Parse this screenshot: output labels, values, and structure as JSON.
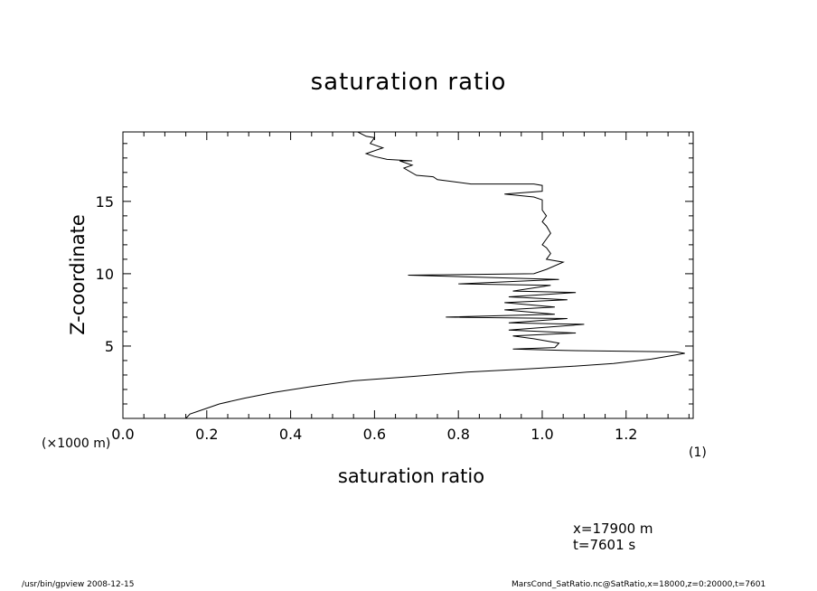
{
  "chart_data": {
    "type": "line",
    "title": "saturation ratio",
    "xlabel": "saturation ratio",
    "ylabel": "Z-coordinate",
    "x_unit_label": "(1)",
    "y_unit_label": "(×1000 m)",
    "xlim": [
      0.0,
      1.36
    ],
    "ylim": [
      0.0,
      19.8
    ],
    "x_ticks": [
      "0.0",
      "0.2",
      "0.4",
      "0.6",
      "0.8",
      "1.0",
      "1.2"
    ],
    "y_ticks": [
      "5",
      "10",
      "15"
    ],
    "grid": false,
    "legend": "none",
    "series": [
      {
        "x": [
          0.15,
          0.16,
          0.19,
          0.23,
          0.29,
          0.36,
          0.45,
          0.55,
          0.69,
          0.82,
          0.95,
          1.07,
          1.17,
          1.26,
          1.3,
          1.34,
          1.32,
          1.05,
          0.93,
          1.03,
          1.04,
          0.98,
          0.93,
          1.08,
          0.92,
          1.1,
          0.92,
          1.06,
          0.77,
          1.03,
          0.91,
          1.03,
          0.91,
          1.06,
          0.92,
          1.08,
          0.93,
          1.02,
          0.8,
          1.04,
          0.68,
          0.98,
          1.01,
          1.05,
          1.01,
          1.02,
          1.01,
          1.0,
          1.01,
          1.02,
          1.01,
          1.0,
          1.01,
          1.0,
          1.0,
          0.98,
          0.91,
          1.0,
          1.0,
          0.98,
          0.83,
          0.75,
          0.74,
          0.7,
          0.67,
          0.69,
          0.66,
          0.69,
          0.63,
          0.6,
          0.58,
          0.62,
          0.59,
          0.6,
          0.58,
          0.56,
          0.55
        ],
        "y": [
          0.0,
          0.3,
          0.6,
          1.0,
          1.4,
          1.8,
          2.2,
          2.6,
          2.9,
          3.2,
          3.4,
          3.6,
          3.8,
          4.1,
          4.3,
          4.5,
          4.6,
          4.7,
          4.8,
          4.9,
          5.2,
          5.5,
          5.7,
          5.9,
          6.1,
          6.5,
          6.6,
          6.9,
          7.0,
          7.2,
          7.5,
          7.7,
          8.0,
          8.2,
          8.4,
          8.7,
          8.8,
          9.2,
          9.3,
          9.6,
          9.9,
          10.0,
          10.3,
          10.8,
          11.0,
          11.4,
          11.8,
          12.0,
          12.4,
          12.8,
          13.3,
          13.6,
          14.0,
          14.4,
          15.1,
          15.3,
          15.5,
          15.7,
          16.1,
          16.2,
          16.2,
          16.5,
          16.7,
          16.8,
          17.3,
          17.5,
          17.8,
          17.8,
          17.9,
          18.1,
          18.3,
          18.7,
          19.0,
          19.4,
          19.5,
          19.8,
          20.0
        ]
      }
    ]
  },
  "annotations": {
    "x_position": "x=17900  m",
    "time": "t=7601  s"
  },
  "footer": {
    "left": "/usr/bin/gpview   2008-12-15",
    "right": "MarsCond_SatRatio.nc@SatRatio,x=18000,z=0:20000,t=7601"
  }
}
